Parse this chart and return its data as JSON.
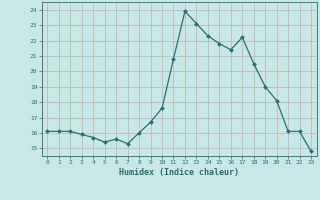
{
  "x": [
    0,
    1,
    2,
    3,
    4,
    5,
    6,
    7,
    8,
    9,
    10,
    11,
    12,
    13,
    14,
    15,
    16,
    17,
    18,
    19,
    20,
    21,
    22,
    23
  ],
  "y": [
    16.1,
    16.1,
    16.1,
    15.9,
    15.7,
    15.4,
    15.6,
    15.3,
    16.0,
    16.7,
    17.6,
    20.8,
    23.9,
    23.1,
    22.3,
    21.8,
    21.4,
    22.2,
    20.5,
    19.0,
    18.1,
    16.1,
    16.1,
    14.8
  ],
  "xlabel": "Humidex (Indice chaleur)",
  "ylabel_ticks": [
    15,
    16,
    17,
    18,
    19,
    20,
    21,
    22,
    23,
    24
  ],
  "xlim": [
    -0.5,
    23.5
  ],
  "ylim": [
    14.5,
    24.5
  ],
  "line_color": "#2d6e6e",
  "marker_color": "#2d6e6e",
  "bg_color": "#c8e8e8",
  "grid_color": "#c0b0b0",
  "tick_color": "#2d6e6e",
  "label_color": "#2d6e6e"
}
